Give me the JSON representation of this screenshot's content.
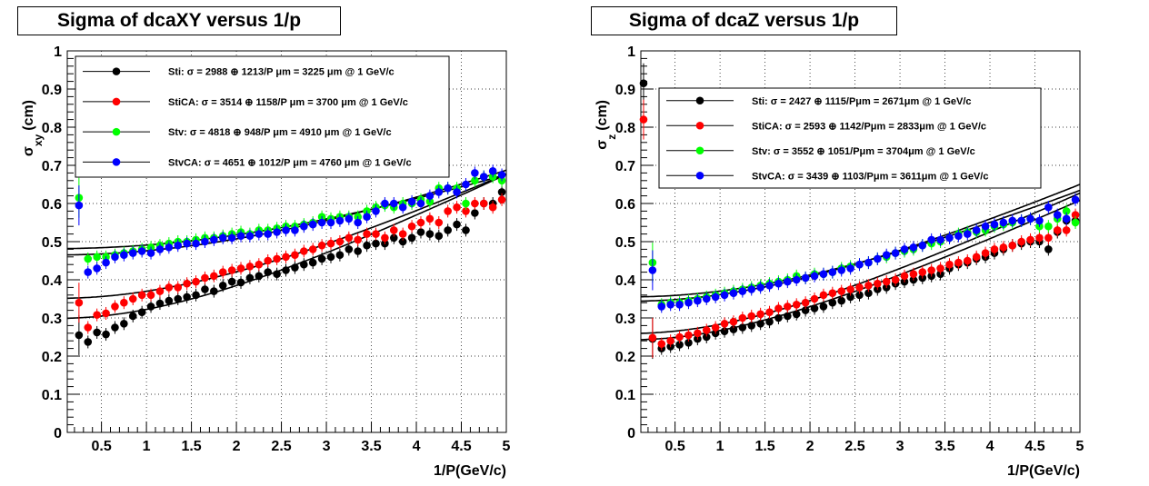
{
  "chart_data": [
    {
      "type": "scatter",
      "title": "Sigma of dcaXY versus 1/p",
      "xlabel": "1/P(GeV/c)",
      "ylabel": "σ_xy (cm)",
      "ylabel_symbol": "σ",
      "ylabel_sub": "xy",
      "ylabel_unit": "(cm)",
      "xlim": [
        0.12,
        5
      ],
      "ylim": [
        0,
        1
      ],
      "xticks": [
        0.5,
        1,
        1.5,
        2,
        2.5,
        3,
        3.5,
        4,
        4.5,
        5
      ],
      "xtick_labels": [
        "0.5",
        "1",
        "1.5",
        "2",
        "2.5",
        "3",
        "3.5",
        "4",
        "4.5",
        "5"
      ],
      "yticks": [
        0,
        0.1,
        0.2,
        0.3,
        0.4,
        0.5,
        0.6,
        0.7,
        0.8,
        0.9,
        1
      ],
      "ytick_labels": [
        "0",
        "0.1",
        "0.2",
        "0.3",
        "0.4",
        "0.5",
        "0.6",
        "0.7",
        "0.8",
        "0.9",
        "1"
      ],
      "grid": true,
      "legend_placement": "top",
      "series": [
        {
          "name": "Sti: σ = 2988  ⊕ 1213/P μm = 3225 μm @ 1 GeV/c",
          "color": "#000000",
          "fit": {
            "a": 0.2988,
            "b": 0.1213
          },
          "x": [
            0.25,
            0.35,
            0.45,
            0.55,
            0.65,
            0.75,
            0.85,
            0.95,
            1.05,
            1.15,
            1.25,
            1.35,
            1.45,
            1.55,
            1.65,
            1.75,
            1.85,
            1.95,
            2.05,
            2.15,
            2.25,
            2.35,
            2.45,
            2.55,
            2.65,
            2.75,
            2.85,
            2.95,
            3.05,
            3.15,
            3.25,
            3.35,
            3.45,
            3.55,
            3.65,
            3.75,
            3.85,
            3.95,
            4.05,
            4.15,
            4.25,
            4.35,
            4.45,
            4.55,
            4.65,
            4.75,
            4.85,
            4.95
          ],
          "y": [
            0.255,
            0.237,
            0.262,
            0.257,
            0.275,
            0.285,
            0.305,
            0.315,
            0.33,
            0.338,
            0.345,
            0.35,
            0.355,
            0.36,
            0.375,
            0.37,
            0.385,
            0.395,
            0.393,
            0.405,
            0.41,
            0.42,
            0.415,
            0.425,
            0.432,
            0.44,
            0.445,
            0.455,
            0.46,
            0.465,
            0.48,
            0.475,
            0.49,
            0.495,
            0.495,
            0.51,
            0.5,
            0.51,
            0.525,
            0.52,
            0.515,
            0.53,
            0.545,
            0.53,
            0.575,
            0.6,
            0.6,
            0.63
          ]
        },
        {
          "name": "StiCA: σ = 3514  ⊕ 1158/P μm = 3700 μm @ 1 GeV/c",
          "color": "#ff0000",
          "fit": {
            "a": 0.3514,
            "b": 0.1158
          },
          "x": [
            0.25,
            0.35,
            0.45,
            0.55,
            0.65,
            0.75,
            0.85,
            0.95,
            1.05,
            1.15,
            1.25,
            1.35,
            1.45,
            1.55,
            1.65,
            1.75,
            1.85,
            1.95,
            2.05,
            2.15,
            2.25,
            2.35,
            2.45,
            2.55,
            2.65,
            2.75,
            2.85,
            2.95,
            3.05,
            3.15,
            3.25,
            3.35,
            3.45,
            3.55,
            3.65,
            3.75,
            3.85,
            3.95,
            4.05,
            4.15,
            4.25,
            4.35,
            4.45,
            4.55,
            4.65,
            4.75,
            4.85,
            4.95
          ],
          "y": [
            0.34,
            0.275,
            0.308,
            0.312,
            0.33,
            0.34,
            0.35,
            0.36,
            0.36,
            0.37,
            0.38,
            0.38,
            0.39,
            0.395,
            0.405,
            0.41,
            0.42,
            0.425,
            0.43,
            0.435,
            0.44,
            0.45,
            0.455,
            0.46,
            0.465,
            0.475,
            0.48,
            0.49,
            0.495,
            0.5,
            0.51,
            0.505,
            0.52,
            0.52,
            0.51,
            0.53,
            0.52,
            0.54,
            0.55,
            0.56,
            0.55,
            0.58,
            0.59,
            0.58,
            0.6,
            0.6,
            0.59,
            0.61
          ]
        },
        {
          "name": "Stv: σ = 4818  ⊕ 948/P μm = 4910 μm @ 1 GeV/c",
          "color": "#00ff00",
          "fit": {
            "a": 0.4818,
            "b": 0.0948
          },
          "x": [
            0.25,
            0.35,
            0.45,
            0.55,
            0.65,
            0.75,
            0.85,
            0.95,
            1.05,
            1.15,
            1.25,
            1.35,
            1.45,
            1.55,
            1.65,
            1.75,
            1.85,
            1.95,
            2.05,
            2.15,
            2.25,
            2.35,
            2.45,
            2.55,
            2.65,
            2.75,
            2.85,
            2.95,
            3.05,
            3.15,
            3.25,
            3.35,
            3.45,
            3.55,
            3.65,
            3.75,
            3.85,
            3.95,
            4.05,
            4.15,
            4.25,
            4.35,
            4.45,
            4.55,
            4.65,
            4.75,
            4.85,
            4.95
          ],
          "y": [
            0.615,
            0.455,
            0.46,
            0.46,
            0.465,
            0.47,
            0.475,
            0.48,
            0.485,
            0.49,
            0.495,
            0.5,
            0.5,
            0.505,
            0.51,
            0.51,
            0.515,
            0.52,
            0.525,
            0.52,
            0.53,
            0.53,
            0.535,
            0.54,
            0.54,
            0.545,
            0.55,
            0.565,
            0.56,
            0.565,
            0.565,
            0.565,
            0.58,
            0.59,
            0.595,
            0.59,
            0.6,
            0.6,
            0.61,
            0.605,
            0.64,
            0.64,
            0.64,
            0.6,
            0.66,
            0.67,
            0.67,
            0.66
          ]
        },
        {
          "name": "StvCA: σ = 4651  ⊕ 1012/P μm = 4760 μm @ 1 GeV/c",
          "color": "#0000ff",
          "fit": {
            "a": 0.4651,
            "b": 0.1012
          },
          "x": [
            0.25,
            0.35,
            0.45,
            0.55,
            0.65,
            0.75,
            0.85,
            0.95,
            1.05,
            1.15,
            1.25,
            1.35,
            1.45,
            1.55,
            1.65,
            1.75,
            1.85,
            1.95,
            2.05,
            2.15,
            2.25,
            2.35,
            2.45,
            2.55,
            2.65,
            2.75,
            2.85,
            2.95,
            3.05,
            3.15,
            3.25,
            3.35,
            3.45,
            3.55,
            3.65,
            3.75,
            3.85,
            3.95,
            4.05,
            4.15,
            4.25,
            4.35,
            4.45,
            4.55,
            4.65,
            4.75,
            4.85,
            4.95
          ],
          "y": [
            0.595,
            0.42,
            0.43,
            0.445,
            0.46,
            0.465,
            0.47,
            0.475,
            0.47,
            0.48,
            0.485,
            0.49,
            0.495,
            0.495,
            0.5,
            0.505,
            0.51,
            0.51,
            0.515,
            0.515,
            0.52,
            0.52,
            0.525,
            0.53,
            0.53,
            0.54,
            0.545,
            0.55,
            0.55,
            0.555,
            0.56,
            0.55,
            0.565,
            0.58,
            0.6,
            0.6,
            0.59,
            0.605,
            0.6,
            0.62,
            0.63,
            0.64,
            0.63,
            0.65,
            0.68,
            0.67,
            0.685,
            0.675
          ]
        }
      ]
    },
    {
      "type": "scatter",
      "title": "Sigma of dcaZ versus 1/p",
      "xlabel": "1/P(GeV/c)",
      "ylabel": "σ_z (cm)",
      "ylabel_symbol": "σ",
      "ylabel_sub": "z",
      "ylabel_unit": "(cm)",
      "xlim": [
        0.12,
        5
      ],
      "ylim": [
        0,
        1
      ],
      "xticks": [
        0.5,
        1,
        1.5,
        2,
        2.5,
        3,
        3.5,
        4,
        4.5,
        5
      ],
      "xtick_labels": [
        "0.5",
        "1",
        "1.5",
        "2",
        "2.5",
        "3",
        "3.5",
        "4",
        "4.5",
        "5"
      ],
      "yticks": [
        0,
        0.1,
        0.2,
        0.3,
        0.4,
        0.5,
        0.6,
        0.7,
        0.8,
        0.9,
        1
      ],
      "ytick_labels": [
        "0",
        "0.1",
        "0.2",
        "0.3",
        "0.4",
        "0.5",
        "0.6",
        "0.7",
        "0.8",
        "0.9",
        "1"
      ],
      "grid": true,
      "legend_placement": "top",
      "series": [
        {
          "name": "Sti: σ = 2427 ⊕ 1115/Pμm = 2671μm @ 1 GeV/c",
          "color": "#000000",
          "fit": {
            "a": 0.2427,
            "b": 0.1115
          },
          "x": [
            0.15,
            0.25,
            0.35,
            0.45,
            0.55,
            0.65,
            0.75,
            0.85,
            0.95,
            1.05,
            1.15,
            1.25,
            1.35,
            1.45,
            1.55,
            1.65,
            1.75,
            1.85,
            1.95,
            2.05,
            2.15,
            2.25,
            2.35,
            2.45,
            2.55,
            2.65,
            2.75,
            2.85,
            2.95,
            3.05,
            3.15,
            3.25,
            3.35,
            3.45,
            3.55,
            3.65,
            3.75,
            3.85,
            3.95,
            4.05,
            4.15,
            4.25,
            4.35,
            4.45,
            4.55,
            4.65,
            4.75,
            4.85,
            4.95
          ],
          "y": [
            0.915,
            0.245,
            0.22,
            0.225,
            0.23,
            0.235,
            0.245,
            0.25,
            0.26,
            0.265,
            0.27,
            0.275,
            0.28,
            0.285,
            0.29,
            0.3,
            0.305,
            0.31,
            0.32,
            0.325,
            0.33,
            0.34,
            0.345,
            0.355,
            0.36,
            0.365,
            0.375,
            0.38,
            0.39,
            0.395,
            0.4,
            0.405,
            0.41,
            0.415,
            0.43,
            0.44,
            0.445,
            0.455,
            0.46,
            0.47,
            0.48,
            0.49,
            0.495,
            0.5,
            0.5,
            0.48,
            0.525,
            0.555,
            0.555
          ]
        },
        {
          "name": "StiCA: σ = 2593 ⊕ 1142/Pμm = 2833μm @ 1 GeV/c",
          "color": "#ff0000",
          "fit": {
            "a": 0.2593,
            "b": 0.1142
          },
          "x": [
            0.15,
            0.25,
            0.35,
            0.45,
            0.55,
            0.65,
            0.75,
            0.85,
            0.95,
            1.05,
            1.15,
            1.25,
            1.35,
            1.45,
            1.55,
            1.65,
            1.75,
            1.85,
            1.95,
            2.05,
            2.15,
            2.25,
            2.35,
            2.45,
            2.55,
            2.65,
            2.75,
            2.85,
            2.95,
            3.05,
            3.15,
            3.25,
            3.35,
            3.45,
            3.55,
            3.65,
            3.75,
            3.85,
            3.95,
            4.05,
            4.15,
            4.25,
            4.35,
            4.45,
            4.55,
            4.65,
            4.75,
            4.85,
            4.95
          ],
          "y": [
            0.82,
            0.248,
            0.232,
            0.24,
            0.25,
            0.255,
            0.26,
            0.268,
            0.275,
            0.285,
            0.29,
            0.3,
            0.305,
            0.31,
            0.315,
            0.325,
            0.33,
            0.335,
            0.34,
            0.35,
            0.36,
            0.365,
            0.37,
            0.375,
            0.38,
            0.385,
            0.39,
            0.395,
            0.4,
            0.41,
            0.415,
            0.42,
            0.425,
            0.43,
            0.44,
            0.445,
            0.45,
            0.46,
            0.47,
            0.48,
            0.485,
            0.49,
            0.5,
            0.505,
            0.51,
            0.51,
            0.53,
            0.53,
            0.57
          ]
        },
        {
          "name": "Stv: σ = 3552 ⊕ 1051/Pμm = 3704μm @ 1 GeV/c",
          "color": "#00ff00",
          "fit": {
            "a": 0.3552,
            "b": 0.1051
          },
          "x": [
            0.25,
            0.35,
            0.45,
            0.55,
            0.65,
            0.75,
            0.85,
            0.95,
            1.05,
            1.15,
            1.25,
            1.35,
            1.45,
            1.55,
            1.65,
            1.75,
            1.85,
            1.95,
            2.05,
            2.15,
            2.25,
            2.35,
            2.45,
            2.55,
            2.65,
            2.75,
            2.85,
            2.95,
            3.05,
            3.15,
            3.25,
            3.35,
            3.45,
            3.55,
            3.65,
            3.75,
            3.85,
            3.95,
            4.05,
            4.15,
            4.25,
            4.35,
            4.45,
            4.55,
            4.65,
            4.75,
            4.85,
            4.95
          ],
          "y": [
            0.445,
            0.335,
            0.34,
            0.34,
            0.345,
            0.35,
            0.355,
            0.36,
            0.365,
            0.37,
            0.375,
            0.38,
            0.385,
            0.39,
            0.395,
            0.4,
            0.41,
            0.405,
            0.415,
            0.415,
            0.42,
            0.43,
            0.435,
            0.44,
            0.445,
            0.455,
            0.46,
            0.47,
            0.475,
            0.48,
            0.49,
            0.495,
            0.5,
            0.51,
            0.52,
            0.525,
            0.525,
            0.53,
            0.54,
            0.545,
            0.55,
            0.555,
            0.56,
            0.54,
            0.54,
            0.56,
            0.58,
            0.55
          ]
        },
        {
          "name": "StvCA: σ = 3439 ⊕ 1103/Pμm = 3611μm @ 1 GeV/c",
          "color": "#0000ff",
          "fit": {
            "a": 0.3439,
            "b": 0.1103
          },
          "x": [
            0.25,
            0.35,
            0.45,
            0.55,
            0.65,
            0.75,
            0.85,
            0.95,
            1.05,
            1.15,
            1.25,
            1.35,
            1.45,
            1.55,
            1.65,
            1.75,
            1.85,
            1.95,
            2.05,
            2.15,
            2.25,
            2.35,
            2.45,
            2.55,
            2.65,
            2.75,
            2.85,
            2.95,
            3.05,
            3.15,
            3.25,
            3.35,
            3.45,
            3.55,
            3.65,
            3.75,
            3.85,
            3.95,
            4.05,
            4.15,
            4.25,
            4.35,
            4.45,
            4.55,
            4.65,
            4.75,
            4.85,
            4.95
          ],
          "y": [
            0.425,
            0.33,
            0.335,
            0.335,
            0.34,
            0.345,
            0.35,
            0.355,
            0.36,
            0.365,
            0.37,
            0.375,
            0.38,
            0.385,
            0.39,
            0.395,
            0.4,
            0.405,
            0.41,
            0.415,
            0.42,
            0.425,
            0.43,
            0.44,
            0.445,
            0.455,
            0.465,
            0.47,
            0.48,
            0.485,
            0.49,
            0.505,
            0.505,
            0.51,
            0.515,
            0.52,
            0.53,
            0.54,
            0.545,
            0.55,
            0.555,
            0.555,
            0.56,
            0.555,
            0.59,
            0.57,
            0.56,
            0.61
          ]
        }
      ]
    }
  ]
}
